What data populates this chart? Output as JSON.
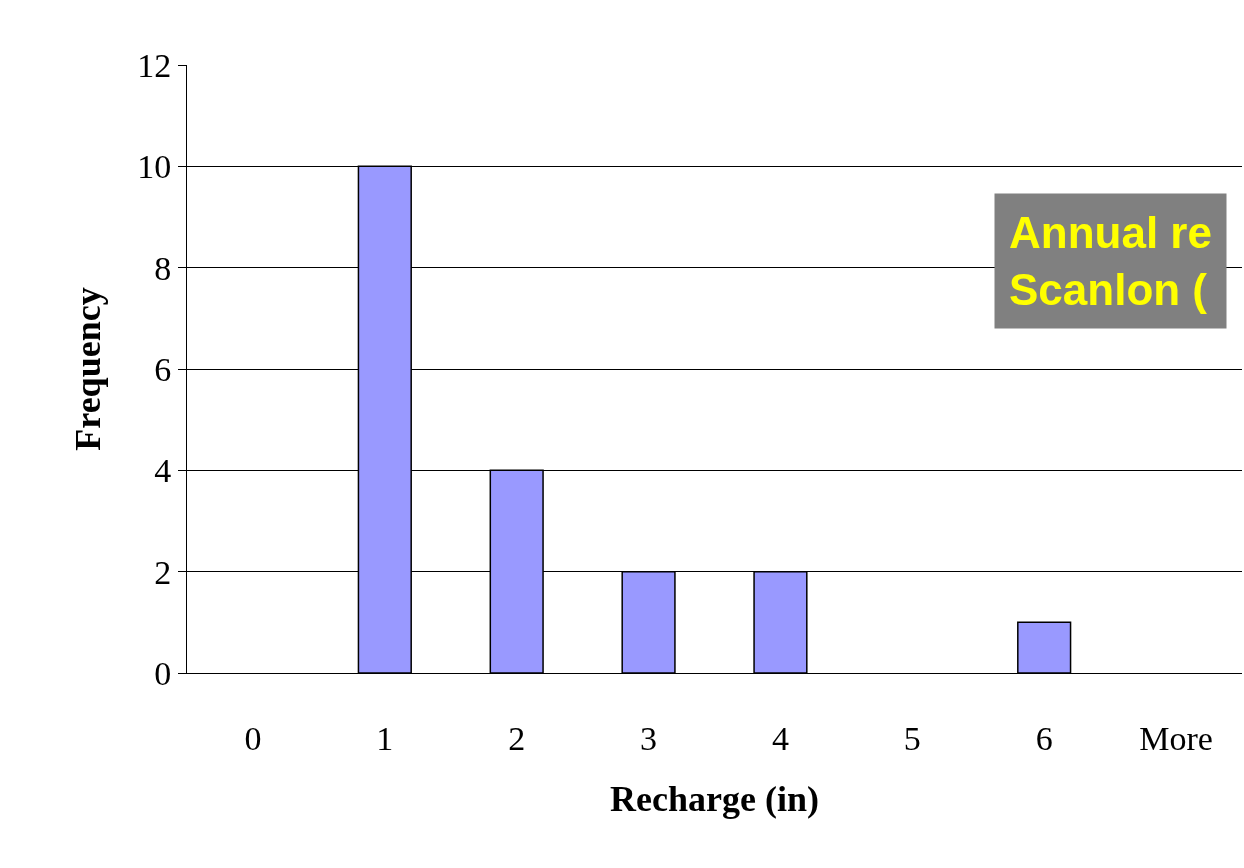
{
  "chart_data": {
    "type": "bar",
    "xlabel": "Recharge (in)",
    "ylabel": "Frequency",
    "categories": [
      "0",
      "1",
      "2",
      "3",
      "4",
      "5",
      "6",
      "More"
    ],
    "values": [
      0,
      10,
      4,
      2,
      2,
      0,
      1,
      0
    ],
    "color": "#9999ff",
    "ylim": [
      0,
      12
    ],
    "yticks": [
      0,
      2,
      4,
      6,
      8,
      10,
      12
    ],
    "grid": "y",
    "legend": false,
    "annotations": [
      "Annual re\nScanlon ("
    ]
  }
}
